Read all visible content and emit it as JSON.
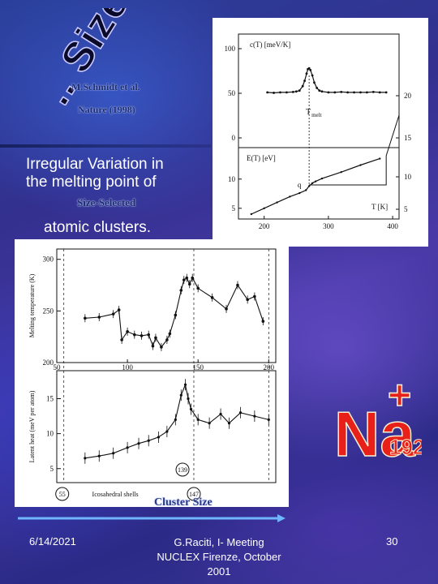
{
  "slide": {
    "title": "... Size Effect",
    "citation_author": "M.Schmidt et al.",
    "citation_journal": "Nature (1998)",
    "body_line1": "Irregular Variation in",
    "body_line2": "the melting point of",
    "size_selected": "Size-Selected",
    "body_line3": "atomic clusters.",
    "badge_element": "Na",
    "badge_charge": "+",
    "badge_size": "192",
    "cluster_size_label": "Cluster Size",
    "footer_date": "6/14/2021",
    "footer_center": "G.Raciti, I- Meeting NUCLEX Firenze, October 2001",
    "footer_page": "30",
    "colors": {
      "text": "#ffffff",
      "badge_fill": "#e8201a",
      "badge_outline": "#f5f0d0",
      "arrow": "#6fb6ff"
    }
  },
  "chart_data": [
    {
      "type": "line",
      "title": "",
      "series": [
        {
          "name": "c(T) [meV/K]",
          "x": [
            205,
            215,
            225,
            235,
            245,
            250,
            255,
            260,
            263,
            266,
            268,
            270,
            272,
            275,
            278,
            282,
            286,
            290,
            300,
            310,
            320,
            330,
            340,
            350,
            360,
            370,
            380,
            390
          ],
          "values": [
            51,
            50.5,
            51,
            51,
            51.5,
            52,
            53,
            58,
            64,
            72,
            77,
            78,
            76,
            70,
            62,
            56,
            53,
            52,
            51,
            51,
            51.5,
            51,
            51,
            51,
            51,
            51.5,
            51,
            51
          ]
        },
        {
          "name": "E(T) [eV]",
          "x": [
            180,
            200,
            220,
            240,
            255,
            265,
            270,
            275,
            280,
            290,
            320,
            350,
            380
          ],
          "values": [
            4.0,
            5.0,
            6.0,
            7.0,
            7.6,
            8.1,
            8.8,
            9.3,
            9.6,
            10.1,
            11.2,
            12.4,
            13.5
          ]
        }
      ],
      "left_axis_top": {
        "label": "c(T) [meV/K]",
        "ticks": [
          "100",
          "50",
          "0"
        ]
      },
      "left_axis_bottom": {
        "label": "E(T) [eV]",
        "ticks": [
          "10",
          "5"
        ]
      },
      "right_axis": {
        "ticks": [
          "20",
          "15",
          "10",
          "5"
        ]
      },
      "xaxis": {
        "label": "T [K]",
        "ticks": [
          "200",
          "300",
          "400"
        ],
        "range": [
          160,
          410
        ]
      },
      "annotations": {
        "melt": "T",
        "melt_sub": "melt",
        "q": "q"
      }
    },
    {
      "type": "line",
      "title": "",
      "panel_top": {
        "ylabel": "Melting temperature (K)",
        "yticks": [
          "300",
          "250",
          "200"
        ],
        "ylim": [
          200,
          310
        ],
        "x": [
          70,
          80,
          90,
          94,
          96,
          100,
          105,
          110,
          115,
          118,
          120,
          124,
          128,
          130,
          134,
          138,
          140,
          142,
          144,
          146,
          150,
          160,
          170,
          178,
          185,
          190,
          196
        ],
        "values": [
          243,
          244,
          247,
          251,
          222,
          230,
          227,
          226,
          227,
          216,
          224,
          215,
          222,
          228,
          246,
          270,
          280,
          282,
          276,
          282,
          272,
          263,
          252,
          275,
          261,
          264,
          240
        ]
      },
      "panel_bottom": {
        "ylabel": "Latent heat (meV per atom)",
        "yticks": [
          "15",
          "10",
          "5"
        ],
        "ylim": [
          3,
          19
        ],
        "x": [
          70,
          80,
          90,
          100,
          108,
          115,
          122,
          128,
          134,
          138,
          141,
          143,
          145,
          150,
          158,
          166,
          172,
          180,
          190,
          200
        ],
        "values": [
          6.5,
          6.8,
          7.2,
          8.0,
          8.6,
          9.0,
          9.5,
          10.3,
          12.0,
          15.5,
          17.0,
          15.0,
          13.5,
          12.0,
          11.5,
          12.8,
          11.5,
          13.0,
          12.5,
          12.0
        ]
      },
      "xaxis": {
        "ticks": [
          "50",
          "100",
          "150",
          "200"
        ],
        "range": [
          50,
          205
        ]
      },
      "labels": {
        "shell_55": "55",
        "shell_147": "147",
        "marker_139": "139",
        "shells_text": "Icosahedral shells"
      }
    }
  ]
}
